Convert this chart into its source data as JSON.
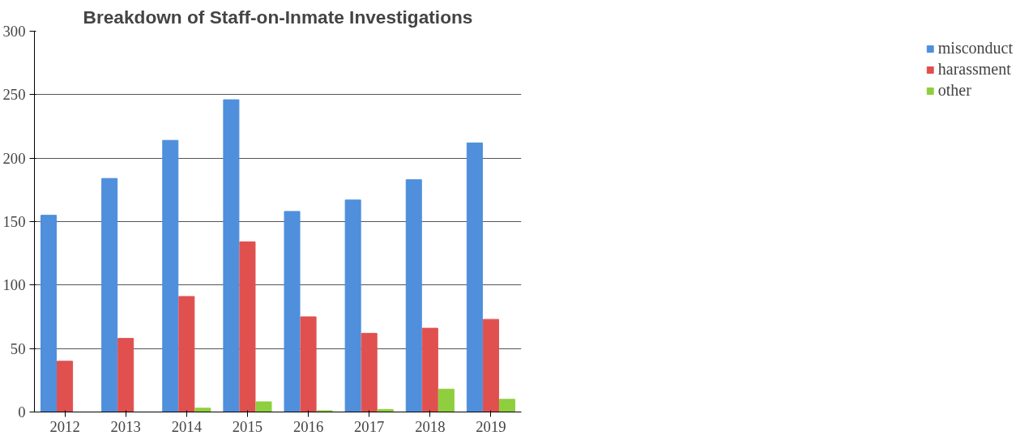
{
  "chart_data": {
    "type": "bar",
    "title": "Breakdown of Staff-on-Inmate Investigations",
    "categories": [
      "2012",
      "2013",
      "2014",
      "2015",
      "2016",
      "2017",
      "2018",
      "2019"
    ],
    "series": [
      {
        "name": "misconduct",
        "color": "#4f8fdc",
        "values": [
          155,
          184,
          214,
          246,
          158,
          167,
          183,
          212
        ]
      },
      {
        "name": "harassment",
        "color": "#e0504f",
        "values": [
          40,
          58,
          91,
          134,
          75,
          62,
          66,
          73
        ]
      },
      {
        "name": "other",
        "color": "#8fce3e",
        "values": [
          0,
          0,
          3,
          8,
          1,
          2,
          18,
          10
        ]
      }
    ],
    "ylim": [
      0,
      300
    ],
    "yticks": [
      0,
      50,
      100,
      150,
      200,
      250,
      300
    ],
    "grid": "y",
    "legend": "right"
  }
}
